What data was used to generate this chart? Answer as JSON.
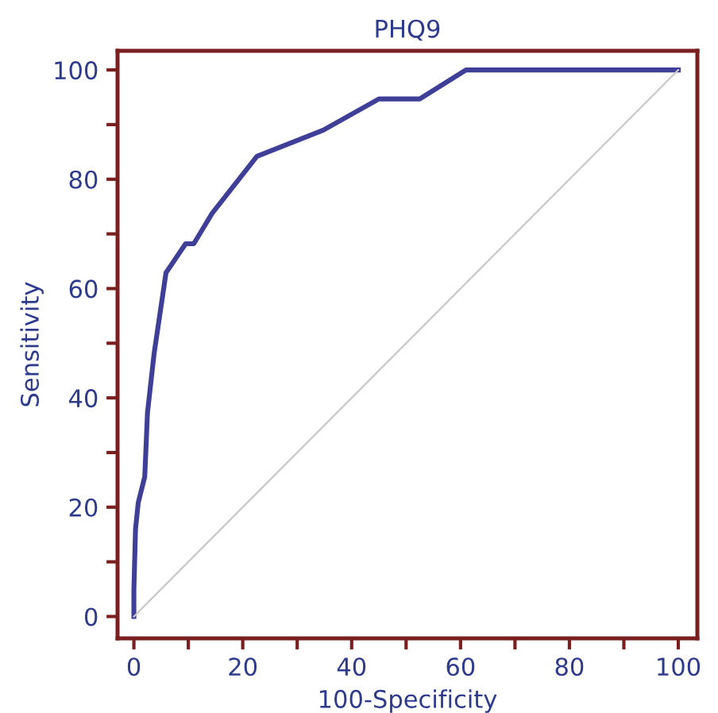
{
  "chart_data": {
    "type": "line",
    "title": "PHQ9",
    "xlabel": "100-Specificity",
    "ylabel": "Sensitivity",
    "xlim": [
      -3,
      103.5
    ],
    "ylim": [
      -4,
      103.5
    ],
    "xticks": [
      0,
      {
        "value": 10,
        "label": null
      },
      20,
      {
        "value": 30,
        "label": null
      },
      40,
      {
        "value": 50,
        "label": null
      },
      60,
      {
        "value": 70,
        "label": null
      },
      80,
      {
        "value": 90,
        "label": null
      },
      100
    ],
    "yticks": [
      0,
      {
        "value": 10,
        "label": null
      },
      20,
      {
        "value": 30,
        "label": null
      },
      40,
      {
        "value": 50,
        "label": null
      },
      60,
      {
        "value": 70,
        "label": null
      },
      80,
      {
        "value": 90,
        "label": null
      },
      100
    ],
    "grid": false,
    "series": [
      {
        "color": "#3f3f98",
        "x": [
          0,
          0,
          0.3,
          0.8,
          2,
          2.5,
          3.7,
          5.9,
          9.5,
          11,
          14.4,
          22.6,
          34.8,
          45,
          52.5,
          61,
          100
        ],
        "values": [
          0,
          4.8,
          16,
          20.8,
          25.6,
          37.3,
          48,
          62.9,
          68.2,
          68.2,
          73.8,
          84.2,
          89,
          94.7,
          94.7,
          100,
          100
        ]
      },
      {
        "color": "#c8c8c8",
        "x": [
          0,
          100
        ],
        "values": [
          0,
          100
        ]
      }
    ]
  }
}
